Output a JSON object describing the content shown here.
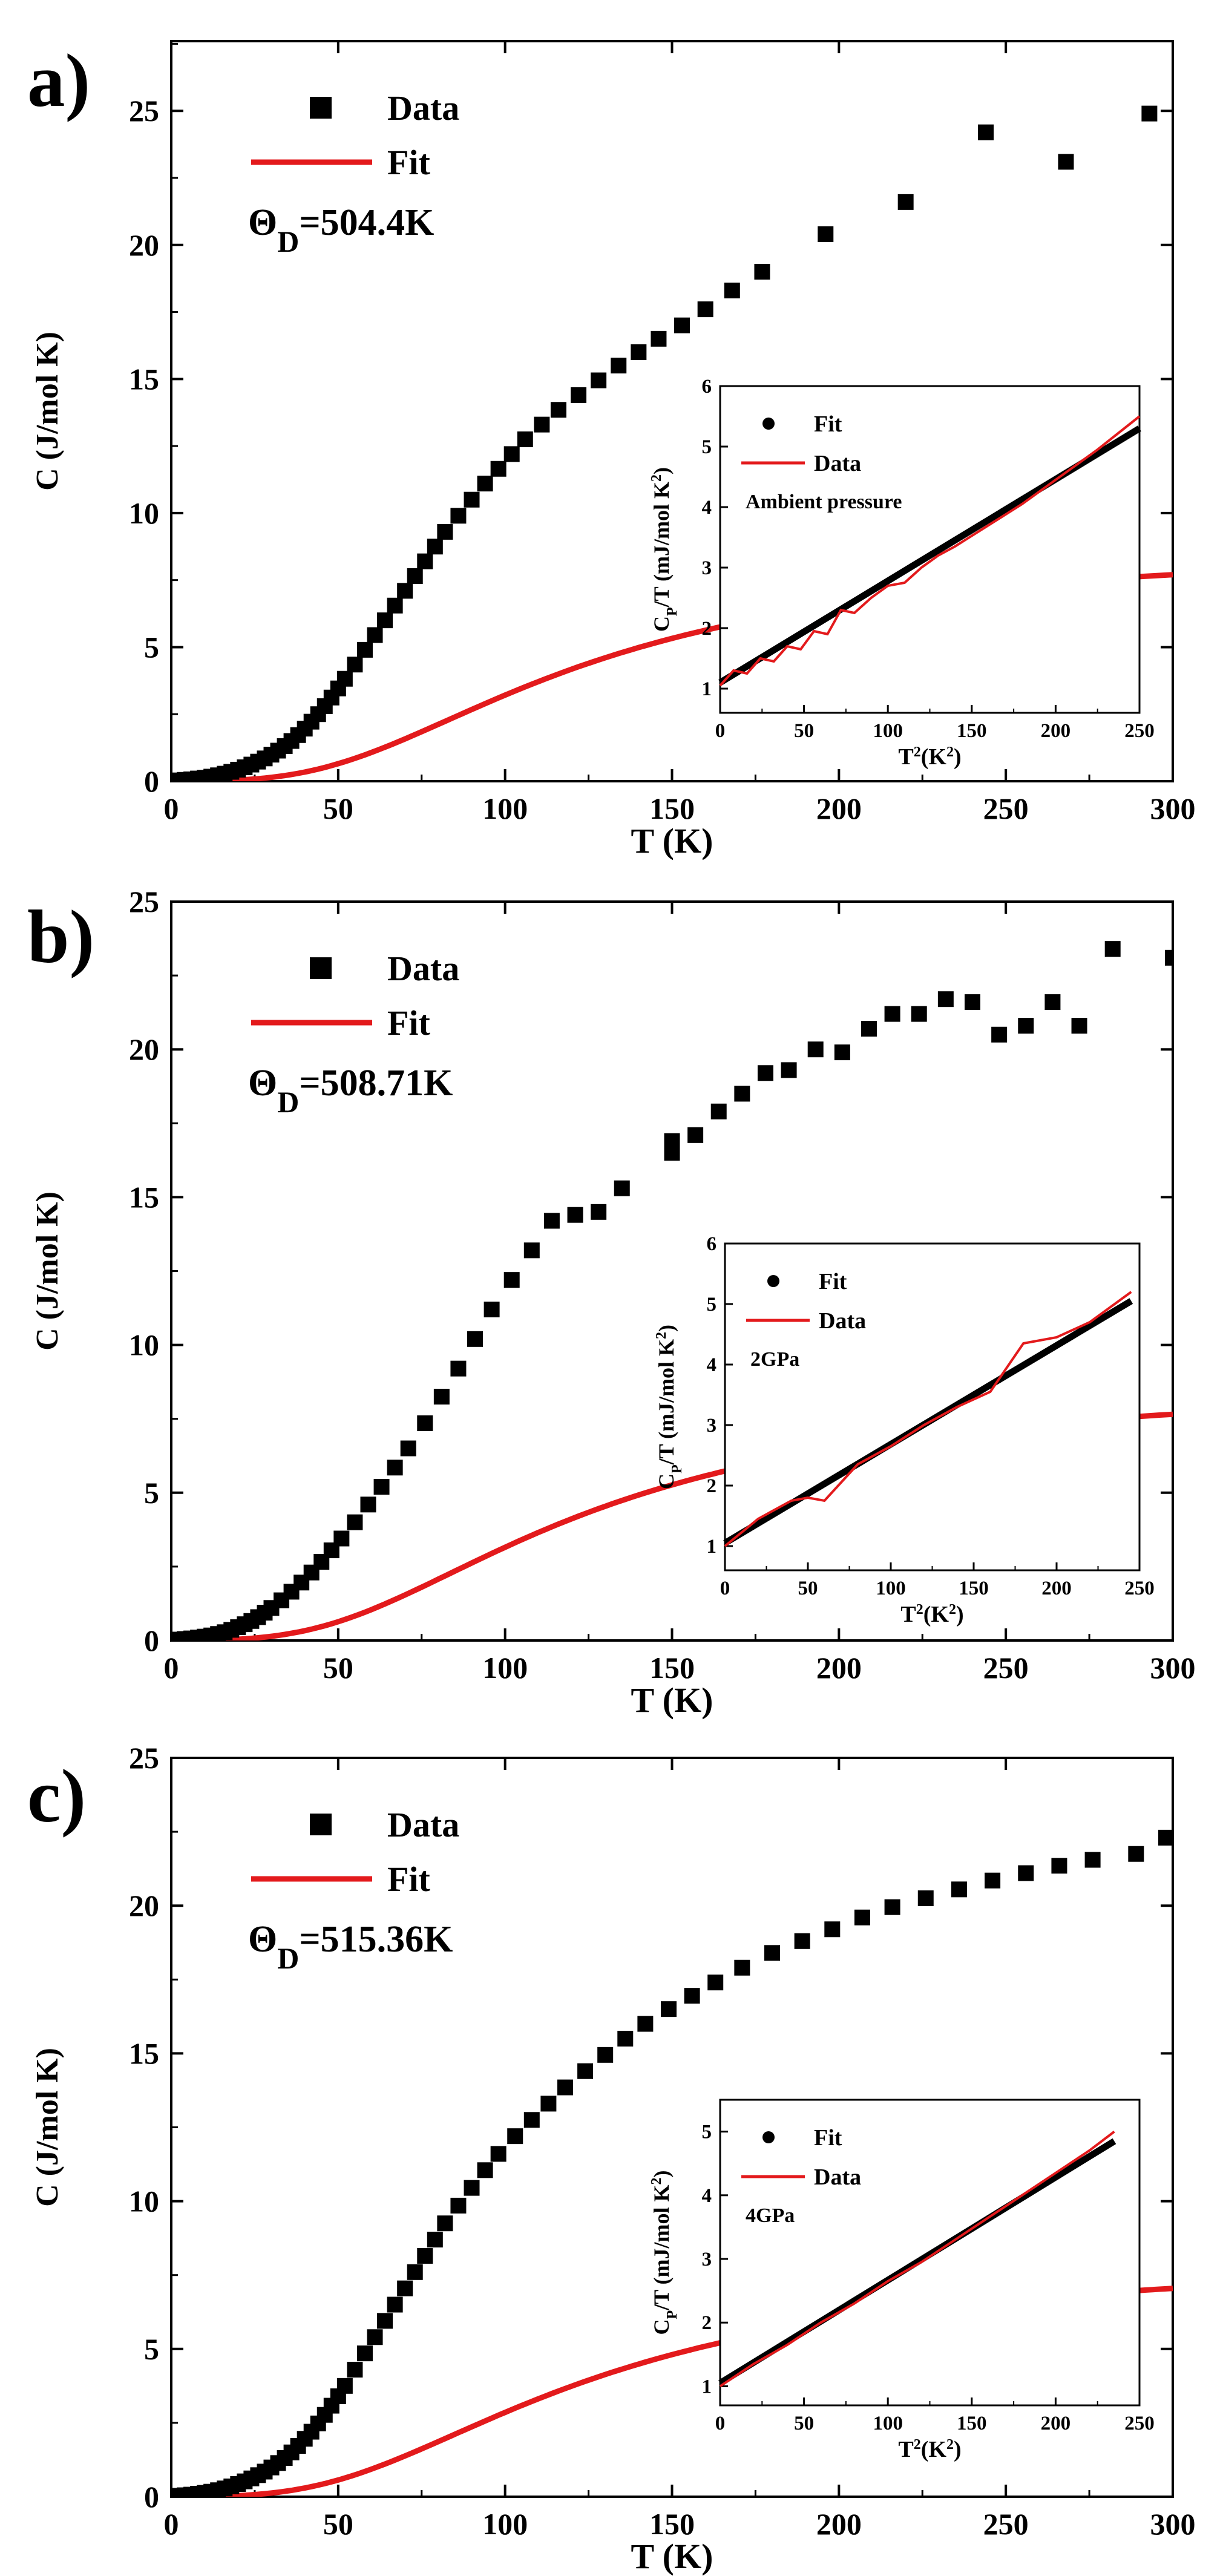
{
  "chart_data": [
    {
      "type": "scatter",
      "panel_label": "a)",
      "xlabel": "T (K)",
      "ylabel": "C  (J/mol K)",
      "xlim": [
        0,
        300
      ],
      "ylim": [
        0,
        27.6
      ],
      "xticks": [
        0,
        50,
        100,
        150,
        200,
        250,
        300
      ],
      "yticks": [
        0,
        5,
        10,
        15,
        20,
        25
      ],
      "legend": {
        "data_label": "Data",
        "fit_label": "Fit",
        "position": "top-left"
      },
      "annotation": {
        "symbol": "Θ",
        "subscript": "D",
        "value": "=504.4K"
      },
      "series": [
        {
          "name": "Data",
          "style": "square-markers",
          "x": [
            2,
            4,
            6,
            8,
            10,
            12,
            14,
            16,
            18,
            20,
            22,
            24,
            26,
            28,
            30,
            32,
            34,
            36,
            38,
            40,
            42,
            44,
            46,
            48,
            50,
            52,
            55,
            58,
            61,
            64,
            67,
            70,
            73,
            76,
            79,
            82,
            86,
            90,
            94,
            98,
            102,
            106,
            111,
            116,
            122,
            128,
            134,
            140,
            146,
            153,
            160,
            168,
            177,
            196,
            220,
            244,
            268,
            293
          ],
          "y": [
            0.03,
            0.05,
            0.07,
            0.1,
            0.13,
            0.17,
            0.22,
            0.28,
            0.35,
            0.43,
            0.52,
            0.62,
            0.73,
            0.85,
            0.99,
            1.14,
            1.31,
            1.5,
            1.72,
            1.96,
            2.22,
            2.5,
            2.8,
            3.12,
            3.46,
            3.82,
            4.35,
            4.9,
            5.45,
            6.0,
            6.55,
            7.1,
            7.65,
            8.2,
            8.75,
            9.3,
            9.9,
            10.5,
            11.1,
            11.65,
            12.2,
            12.75,
            13.3,
            13.85,
            14.4,
            14.95,
            15.5,
            16.0,
            16.5,
            17.0,
            17.6,
            18.3,
            19.0,
            20.4,
            21.6,
            24.2,
            23.1,
            24.9
          ]
        },
        {
          "name": "Fit",
          "style": "line",
          "theta_d": 504.4,
          "scale": 26.5
        }
      ],
      "inset": {
        "xlabel": "T2(K2)",
        "ylabel": "CP/T (mJ/mol K2)",
        "xlim": [
          0,
          250
        ],
        "ylim": [
          0.6,
          6
        ],
        "xticks": [
          0,
          50,
          100,
          150,
          200,
          250
        ],
        "yticks": [
          1,
          2,
          3,
          4,
          5,
          6
        ],
        "legend": {
          "fit_label": "Fit",
          "data_label": "Data",
          "condition": "Ambient pressure"
        },
        "fit_line": {
          "x": [
            0,
            250
          ],
          "y": [
            1.1,
            5.3
          ]
        },
        "data_curve": {
          "x": [
            0,
            8,
            16,
            24,
            32,
            40,
            48,
            56,
            64,
            72,
            80,
            90,
            100,
            110,
            120,
            130,
            140,
            160,
            180,
            200,
            225,
            250
          ],
          "y": [
            1.05,
            1.3,
            1.25,
            1.5,
            1.45,
            1.7,
            1.65,
            1.95,
            1.9,
            2.3,
            2.25,
            2.5,
            2.7,
            2.75,
            3.0,
            3.2,
            3.35,
            3.7,
            4.05,
            4.45,
            4.95,
            5.5
          ]
        }
      }
    },
    {
      "type": "scatter",
      "panel_label": "b)",
      "xlabel": "T (K)",
      "ylabel": "C  (J/mol K)",
      "xlim": [
        0,
        300
      ],
      "ylim": [
        0,
        25
      ],
      "xticks": [
        0,
        50,
        100,
        150,
        200,
        250,
        300
      ],
      "yticks": [
        0,
        5,
        10,
        15,
        20,
        25
      ],
      "legend": {
        "data_label": "Data",
        "fit_label": "Fit",
        "position": "top-left"
      },
      "annotation": {
        "symbol": "Θ",
        "subscript": "D",
        "value": "=508.71K"
      },
      "series": [
        {
          "name": "Data",
          "style": "square-markers",
          "x": [
            2,
            4,
            6,
            8,
            10,
            12,
            14,
            16,
            18,
            20,
            22,
            24,
            26,
            28,
            30,
            33,
            36,
            39,
            42,
            45,
            48,
            51,
            55,
            59,
            63,
            67,
            71,
            76,
            81,
            86,
            91,
            96,
            102,
            108,
            114,
            121,
            128,
            135,
            150,
            150,
            157,
            164,
            171,
            178,
            185,
            193,
            201,
            209,
            216,
            224,
            232,
            240,
            248,
            256,
            264,
            272,
            282,
            300
          ],
          "y": [
            0.03,
            0.05,
            0.07,
            0.1,
            0.13,
            0.17,
            0.22,
            0.28,
            0.36,
            0.45,
            0.55,
            0.66,
            0.79,
            0.94,
            1.1,
            1.36,
            1.65,
            1.96,
            2.3,
            2.66,
            3.05,
            3.45,
            4.0,
            4.6,
            5.2,
            5.85,
            6.5,
            7.35,
            8.25,
            9.2,
            10.2,
            11.2,
            12.2,
            13.2,
            14.2,
            14.4,
            14.5,
            15.3,
            16.9,
            16.5,
            17.1,
            17.9,
            18.5,
            19.2,
            19.3,
            20.0,
            19.9,
            20.7,
            21.2,
            21.2,
            21.7,
            21.6,
            20.5,
            20.8,
            21.6,
            20.8,
            23.4,
            23.1
          ]
        },
        {
          "name": "Fit",
          "style": "line",
          "theta_d": 508.71,
          "scale": 26.4
        }
      ],
      "inset": {
        "xlabel": "T2(K2)",
        "ylabel": "CP/T (mJ/mol K2)",
        "xlim": [
          0,
          250
        ],
        "ylim": [
          0.6,
          6
        ],
        "xticks": [
          0,
          50,
          100,
          150,
          200,
          250
        ],
        "yticks": [
          1,
          2,
          3,
          4,
          5,
          6
        ],
        "legend": {
          "fit_label": "Fit",
          "data_label": "Data",
          "condition": "2GPa"
        },
        "fit_line": {
          "x": [
            0,
            245
          ],
          "y": [
            1.05,
            5.05
          ]
        },
        "data_curve": {
          "x": [
            0,
            20,
            40,
            50,
            60,
            80,
            100,
            120,
            140,
            160,
            170,
            180,
            190,
            200,
            220,
            245
          ],
          "y": [
            1.0,
            1.45,
            1.75,
            1.8,
            1.75,
            2.35,
            2.65,
            3.0,
            3.3,
            3.55,
            3.95,
            4.35,
            4.4,
            4.45,
            4.7,
            5.2
          ]
        }
      }
    },
    {
      "type": "scatter",
      "panel_label": "c)",
      "xlabel": "T (K)",
      "ylabel": "C  (J/mol K)",
      "xlim": [
        0,
        300
      ],
      "ylim": [
        0,
        25
      ],
      "xticks": [
        0,
        50,
        100,
        150,
        200,
        250,
        300
      ],
      "yticks": [
        0,
        5,
        10,
        15,
        20,
        25
      ],
      "legend": {
        "data_label": "Data",
        "fit_label": "Fit",
        "position": "top-left"
      },
      "annotation": {
        "symbol": "Θ",
        "subscript": "D",
        "value": "=515.36K"
      },
      "series": [
        {
          "name": "Data",
          "style": "square-markers",
          "x": [
            2,
            4,
            6,
            8,
            10,
            12,
            14,
            16,
            18,
            20,
            22,
            24,
            26,
            28,
            30,
            32,
            34,
            36,
            38,
            40,
            42,
            44,
            46,
            48,
            50,
            52,
            55,
            58,
            61,
            64,
            67,
            70,
            73,
            76,
            79,
            82,
            86,
            90,
            94,
            98,
            103,
            108,
            113,
            118,
            124,
            130,
            136,
            142,
            149,
            156,
            163,
            171,
            180,
            189,
            198,
            207,
            216,
            226,
            236,
            246,
            256,
            266,
            276,
            289,
            298
          ],
          "y": [
            0.03,
            0.05,
            0.07,
            0.1,
            0.13,
            0.17,
            0.22,
            0.28,
            0.35,
            0.43,
            0.52,
            0.62,
            0.73,
            0.85,
            0.99,
            1.14,
            1.31,
            1.5,
            1.72,
            1.96,
            2.2,
            2.48,
            2.77,
            3.08,
            3.4,
            3.75,
            4.3,
            4.85,
            5.4,
            5.95,
            6.5,
            7.05,
            7.6,
            8.15,
            8.7,
            9.25,
            9.85,
            10.45,
            11.05,
            11.6,
            12.2,
            12.75,
            13.3,
            13.85,
            14.4,
            14.95,
            15.5,
            16.0,
            16.5,
            16.95,
            17.4,
            17.9,
            18.4,
            18.8,
            19.2,
            19.6,
            19.95,
            20.25,
            20.55,
            20.85,
            21.1,
            21.35,
            21.55,
            21.75,
            22.3
          ]
        },
        {
          "name": "Fit",
          "style": "line",
          "theta_d": 515.36,
          "scale": 24.4
        }
      ],
      "inset": {
        "xlabel": "T2(K2)",
        "ylabel": "CP/T (mJ/mol K2)",
        "xlim": [
          0,
          250
        ],
        "ylim": [
          0.7,
          5.5
        ],
        "xticks": [
          0,
          50,
          100,
          150,
          200,
          250
        ],
        "yticks": [
          1,
          2,
          3,
          4,
          5
        ],
        "legend": {
          "fit_label": "Fit",
          "data_label": "Data",
          "condition": "4GPa"
        },
        "fit_line": {
          "x": [
            0,
            235
          ],
          "y": [
            1.05,
            4.85
          ]
        },
        "data_curve": {
          "x": [
            0,
            20,
            40,
            60,
            80,
            100,
            120,
            140,
            160,
            180,
            200,
            220,
            235
          ],
          "y": [
            1.0,
            1.35,
            1.65,
            2.0,
            2.3,
            2.65,
            2.95,
            3.3,
            3.65,
            4.0,
            4.35,
            4.7,
            5.0
          ]
        }
      }
    }
  ]
}
